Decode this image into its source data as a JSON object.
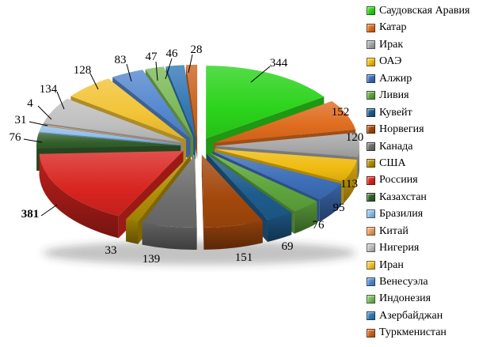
{
  "window": {
    "background": "#FFFFFF"
  },
  "chart_data": {
    "type": "pie",
    "style": "3d-exploded",
    "title": "",
    "legend_position": "right",
    "value_label_color": "#000000",
    "slices": [
      {
        "label": "Саудовская Аравия",
        "value": 344,
        "color": "#2BD31B"
      },
      {
        "label": "Катар",
        "value": 152,
        "color": "#DF6C1E"
      },
      {
        "label": "Ирак",
        "value": 120,
        "color": "#A8A8A8"
      },
      {
        "label": "ОАЭ",
        "value": 113,
        "color": "#EFBB10"
      },
      {
        "label": "Алжир",
        "value": 95,
        "color": "#3E6FB8"
      },
      {
        "label": "Ливия",
        "value": 76,
        "color": "#5FA53E"
      },
      {
        "label": "Кувейт",
        "value": 69,
        "color": "#1F5D8D"
      },
      {
        "label": "Норвегия",
        "value": 151,
        "color": "#A3480C"
      },
      {
        "label": "Канада",
        "value": 139,
        "color": "#6E6E6E"
      },
      {
        "label": "США",
        "value": 33,
        "color": "#B08E04"
      },
      {
        "label": "Россиия",
        "value": 381,
        "color": "#D8241F",
        "bold_value_label": true
      },
      {
        "label": "Казахстан",
        "value": 76,
        "color": "#33602B"
      },
      {
        "label": "Бразилия",
        "value": 31,
        "color": "#8FBFE9"
      },
      {
        "label": "Китай",
        "value": 4,
        "color": "#EC9D5C"
      },
      {
        "label": "Нигерия",
        "value": 134,
        "color": "#BFBFBF"
      },
      {
        "label": "Иран",
        "value": 128,
        "color": "#F2C335"
      },
      {
        "label": "Венесуэла",
        "value": 83,
        "color": "#5588CE"
      },
      {
        "label": "Индонезия",
        "value": 47,
        "color": "#7DBA59"
      },
      {
        "label": "Азербайджан",
        "value": 46,
        "color": "#3379B6"
      },
      {
        "label": "Туркменистан",
        "value": 28,
        "color": "#CB6420"
      }
    ]
  }
}
